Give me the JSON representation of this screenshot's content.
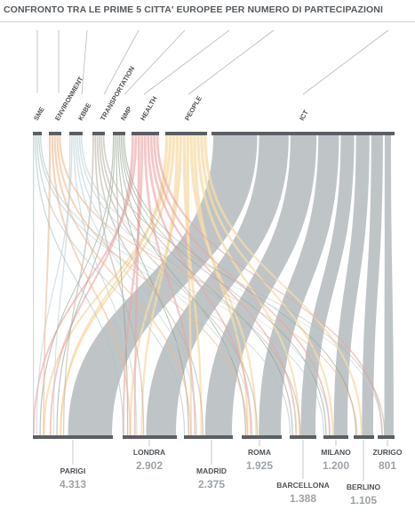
{
  "title": "CONFRONTO TRA LE PRIME 5 CITTA' EUROPEE PER NUMERO DI PARTECIPAZIONI",
  "chart_data": {
    "type": "alluvial",
    "sectors": [
      {
        "name": "SME",
        "color": "#aac3c3"
      },
      {
        "name": "ENVIRONMENT",
        "color": "#f0b98c"
      },
      {
        "name": "KBBE",
        "color": "#bdd0d5"
      },
      {
        "name": "TRANSPORTATION",
        "color": "#b9b3a4"
      },
      {
        "name": "NMP",
        "color": "#8fa08a"
      },
      {
        "name": "HEALTH",
        "color": "#eba4a2"
      },
      {
        "name": "PEOPLE",
        "color": "#f7dba5"
      },
      {
        "name": "ICT",
        "color": "#bcc2c4"
      }
    ],
    "cities": [
      {
        "name": "PARIGI",
        "value": "4.313"
      },
      {
        "name": "LONDRA",
        "value": "2.902"
      },
      {
        "name": "MADRID",
        "value": "2.375"
      },
      {
        "name": "ROMA",
        "value": "1.925"
      },
      {
        "name": "BARCELLONA",
        "value": "1.388"
      },
      {
        "name": "MILANO",
        "value": "1.200"
      },
      {
        "name": "BERLINO",
        "value": "1.105"
      },
      {
        "name": "ZURIGO",
        "value": "801"
      }
    ]
  }
}
